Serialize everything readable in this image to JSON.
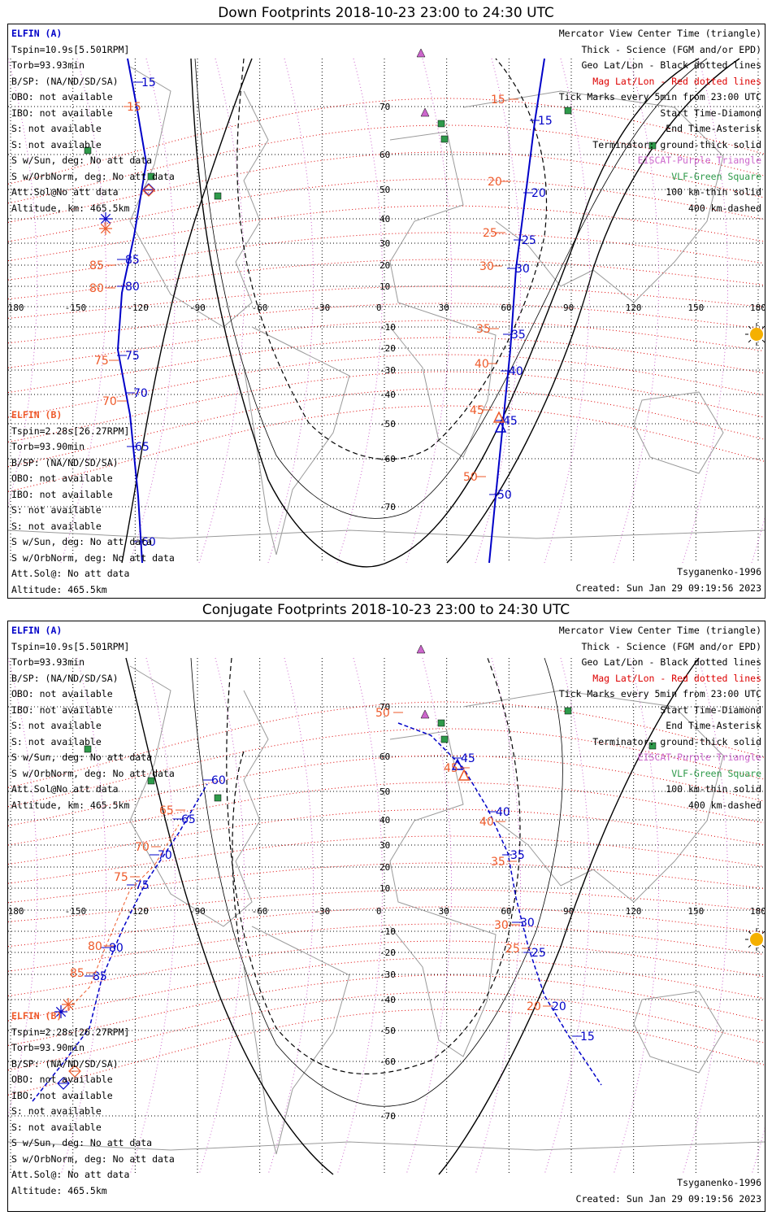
{
  "colors": {
    "elfin_a": "#0000c8",
    "elfin_b": "#ee5a2a",
    "mag_grid": "#dd0000",
    "geo_grid": "#000000",
    "eiscat": "#cc66cc",
    "vlf": "#2e9a4a",
    "terminator": "#000000",
    "coast": "#9a9a9a",
    "sun": "#f5b000"
  },
  "top_panel": {
    "title": "Down Footprints 2018-10-23 23:00 to 24:30 UTC",
    "left_info_a": [
      "ELFIN (A)",
      "Tspin=10.9s[5.501RPM]",
      "Torb=93.93min",
      "B/SP: (NA/ND/SD/SA)",
      "OBO: not available",
      "IBO: not available",
      "S: not available",
      "S: not available",
      "S w/Sun, deg: No att data",
      "S w/OrbNorm, deg: No att data",
      "Att.Sol@No att data",
      "Altitude, km: 465.5km"
    ],
    "left_info_b": [
      "ELFIN (B)",
      "Tspin=2.28s[26.27RPM]",
      "Torb=93.90min",
      "B/SP: (NA/ND/SD/SA)",
      "OBO: not available",
      "IBO: not available",
      "S: not available",
      "S: not available",
      "S w/Sun, deg: No att data",
      "S w/OrbNorm, deg: No att data",
      "Att.Sol@: No att data",
      "Altitude: 465.5km"
    ],
    "right_legend": [
      "Mercator View Center Time (triangle)",
      "Thick - Science (FGM and/or EPD)",
      "Geo Lat/Lon - Black dotted lines",
      "Mag Lat/Lon - Red dotted lines",
      "Tick Marks every 5min from 23:00 UTC",
      "Start Time-Diamond",
      "End Time-Asterisk",
      "Terminator: ground-thick solid",
      "EISCAT-Purple Triangle",
      "VLF-Green Square",
      "100 km-thin solid",
      "400 km-dashed"
    ],
    "model": "Tsyganenko-1996",
    "created": "Created: Sun Jan 29 09:19:56 2023",
    "lon_labels": [
      "-180",
      "-150",
      "-120",
      "-90",
      "-60",
      "-30",
      "0",
      "30",
      "60",
      "90",
      "120",
      "150",
      "180"
    ],
    "lat_labels": [
      "70",
      "60",
      "50",
      "40",
      "30",
      "20",
      "10",
      "-10",
      "-20",
      "-30",
      "-40",
      "-50",
      "-60",
      "-70"
    ],
    "track_a_ticks": [
      "15",
      "20",
      "25",
      "30",
      "35",
      "40",
      "45",
      "50",
      "85",
      "80",
      "75",
      "70",
      "65",
      "60",
      "15"
    ],
    "track_b_ticks": [
      "15",
      "20",
      "25",
      "30",
      "35",
      "40",
      "45",
      "50",
      "85",
      "80",
      "75",
      "70",
      "15"
    ]
  },
  "bottom_panel": {
    "title": "Conjugate Footprints 2018-10-23 23:00 to 24:30 UTC",
    "left_info_a": [
      "ELFIN (A)",
      "Tspin=10.9s[5.501RPM]",
      "Torb=93.93min",
      "B/SP: (NA/ND/SD/SA)",
      "OBO: not available",
      "IBO: not available",
      "S: not available",
      "S: not available",
      "S w/Sun, deg: No att data",
      "S w/OrbNorm, deg: No att data",
      "Att.Sol@No att data",
      "Altitude, km: 465.5km"
    ],
    "left_info_b": [
      "ELFIN (B)",
      "Tspin=2.28s[26.27RPM]",
      "Torb=93.90min",
      "B/SP: (NA/ND/SD/SA)",
      "OBO: not available",
      "IBO: not available",
      "S: not available",
      "S: not available",
      "S w/Sun, deg: No att data",
      "S w/OrbNorm, deg: No att data",
      "Att.Sol@: No att data",
      "Altitude: 465.5km"
    ],
    "right_legend": [
      "Mercator View Center Time (triangle)",
      "Thick - Science (FGM and/or EPD)",
      "Geo Lat/Lon - Black dotted lines",
      "Mag Lat/Lon - Red dotted lines",
      "Tick Marks every 5min from 23:00 UTC",
      "Start Time-Diamond",
      "End Time-Asterisk",
      "Terminator: ground-thick solid",
      "EISCAT-Purple Triangle",
      "VLF-Green Square",
      "100 km-thin solid",
      "400 km-dashed"
    ],
    "model": "Tsyganenko-1996",
    "created": "Created: Sun Jan 29 09:19:56 2023",
    "lon_labels": [
      "-180",
      "-150",
      "-120",
      "-90",
      "-60",
      "-30",
      "0",
      "30",
      "60",
      "90",
      "120",
      "150",
      "180"
    ],
    "lat_labels": [
      "70",
      "60",
      "50",
      "40",
      "30",
      "20",
      "10",
      "-10",
      "-20",
      "-30",
      "-40",
      "-50",
      "-60",
      "-70"
    ],
    "track_a_ticks": [
      "60",
      "65",
      "70",
      "75",
      "80",
      "85",
      "45",
      "40",
      "35",
      "30",
      "25",
      "20",
      "15"
    ],
    "track_b_ticks": [
      "65",
      "70",
      "75",
      "80",
      "85",
      "50",
      "45",
      "40",
      "35",
      "30",
      "25",
      "20"
    ]
  }
}
